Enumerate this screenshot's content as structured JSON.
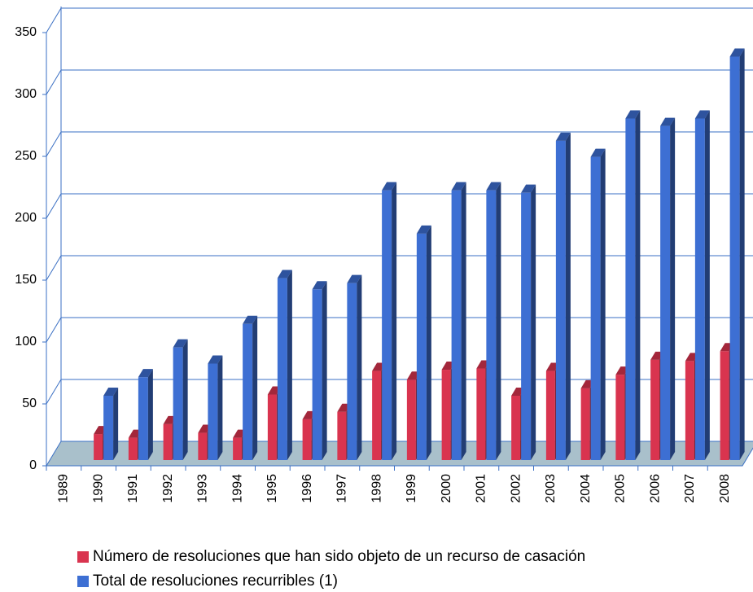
{
  "chart_data": {
    "type": "bar3d",
    "categories": [
      "1989",
      "1990",
      "1991",
      "1992",
      "1993",
      "1994",
      "1995",
      "1996",
      "1997",
      "1998",
      "1999",
      "2000",
      "2001",
      "2002",
      "2003",
      "2004",
      "2005",
      "2006",
      "2007",
      "2008"
    ],
    "series": [
      {
        "name": "Número de resoluciones que han sido objeto de un recurso de casación",
        "color": "#d9344f",
        "values": [
          null,
          21,
          18,
          29,
          22,
          18,
          53,
          33,
          39,
          72,
          65,
          73,
          74,
          52,
          72,
          58,
          69,
          81,
          80,
          88
        ]
      },
      {
        "name": "Total de resoluciones recurribles (1)",
        "color": "#3d6fd3",
        "values": [
          null,
          52,
          67,
          91,
          78,
          110,
          147,
          138,
          143,
          218,
          183,
          218,
          218,
          216,
          258,
          245,
          276,
          270,
          276,
          326
        ]
      }
    ],
    "ylim": [
      0,
      350
    ],
    "yticks": [
      0,
      50,
      100,
      150,
      200,
      250,
      300,
      350
    ],
    "grid": true,
    "legend": "bottom"
  }
}
